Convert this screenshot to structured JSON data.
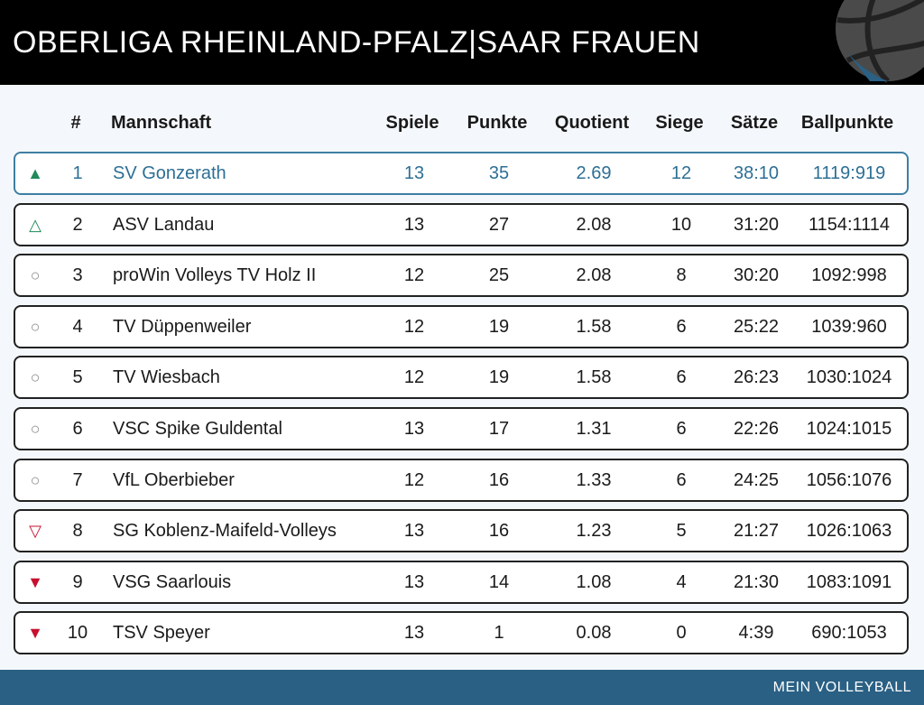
{
  "header": {
    "title": "OBERLIGA RHEINLAND-PFALZ|SAAR FRAUEN"
  },
  "columns": {
    "rank": "#",
    "team": "Mannschaft",
    "spiele": "Spiele",
    "punkte": "Punkte",
    "quotient": "Quotient",
    "siege": "Siege",
    "saetze": "Sätze",
    "ballpunkte": "Ballpunkte"
  },
  "rows": [
    {
      "trend": "▲",
      "trend_type": "up-filled",
      "rank": "1",
      "team": "SV Gonzerath",
      "spiele": "13",
      "punkte": "35",
      "quotient": "2.69",
      "siege": "12",
      "saetze": "38:10",
      "ballpunkte": "1119:919"
    },
    {
      "trend": "△",
      "trend_type": "up-outline",
      "rank": "2",
      "team": "ASV Landau",
      "spiele": "13",
      "punkte": "27",
      "quotient": "2.08",
      "siege": "10",
      "saetze": "31:20",
      "ballpunkte": "1154:1114"
    },
    {
      "trend": "○",
      "trend_type": "neutral",
      "rank": "3",
      "team": "proWin Volleys TV Holz II",
      "spiele": "12",
      "punkte": "25",
      "quotient": "2.08",
      "siege": "8",
      "saetze": "30:20",
      "ballpunkte": "1092:998"
    },
    {
      "trend": "○",
      "trend_type": "neutral",
      "rank": "4",
      "team": "TV Düppenweiler",
      "spiele": "12",
      "punkte": "19",
      "quotient": "1.58",
      "siege": "6",
      "saetze": "25:22",
      "ballpunkte": "1039:960"
    },
    {
      "trend": "○",
      "trend_type": "neutral",
      "rank": "5",
      "team": "TV Wiesbach",
      "spiele": "12",
      "punkte": "19",
      "quotient": "1.58",
      "siege": "6",
      "saetze": "26:23",
      "ballpunkte": "1030:1024"
    },
    {
      "trend": "○",
      "trend_type": "neutral",
      "rank": "6",
      "team": "VSC Spike Guldental",
      "spiele": "13",
      "punkte": "17",
      "quotient": "1.31",
      "siege": "6",
      "saetze": "22:26",
      "ballpunkte": "1024:1015"
    },
    {
      "trend": "○",
      "trend_type": "neutral",
      "rank": "7",
      "team": "VfL Oberbieber",
      "spiele": "12",
      "punkte": "16",
      "quotient": "1.33",
      "siege": "6",
      "saetze": "24:25",
      "ballpunkte": "1056:1076"
    },
    {
      "trend": "▽",
      "trend_type": "down-outline",
      "rank": "8",
      "team": "SG Koblenz-Maifeld-Volleys",
      "spiele": "13",
      "punkte": "16",
      "quotient": "1.23",
      "siege": "5",
      "saetze": "21:27",
      "ballpunkte": "1026:1063"
    },
    {
      "trend": "▼",
      "trend_type": "down-filled",
      "rank": "9",
      "team": "VSG Saarlouis",
      "spiele": "13",
      "punkte": "14",
      "quotient": "1.08",
      "siege": "4",
      "saetze": "21:30",
      "ballpunkte": "1083:1091"
    },
    {
      "trend": "▼",
      "trend_type": "down-filled",
      "rank": "10",
      "team": "TSV Speyer",
      "spiele": "13",
      "punkte": "1",
      "quotient": "0.08",
      "siege": "0",
      "saetze": "4:39",
      "ballpunkte": "690:1053"
    }
  ],
  "colors": {
    "header_bg": "#000000",
    "footer_bg": "#2a6084",
    "highlight": "#2d6f95",
    "trend_up": "#1f8a5a",
    "trend_down": "#c8102e"
  },
  "footer": {
    "brand": "MEIN VOLLEYBALL"
  },
  "icons": {
    "logo": "volleyball-icon"
  }
}
